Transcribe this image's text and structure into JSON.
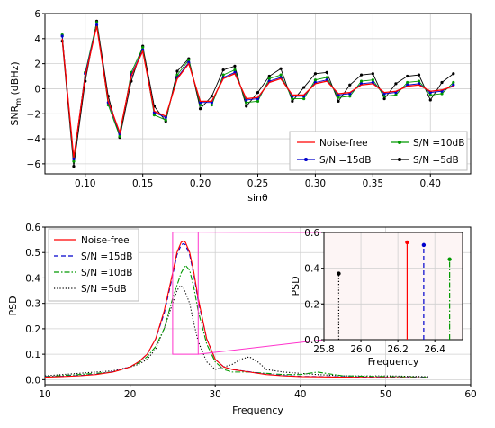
{
  "chart_data": [
    {
      "type": "line",
      "xlabel": "sinθ",
      "ylabel": "SNRₘ (dBHz)",
      "ylabel_main": "SNR",
      "ylabel_sub": "m",
      "ylabel_unit": " (dBHz)",
      "xlim": [
        0.065,
        0.435
      ],
      "ylim": [
        -6.8,
        6
      ],
      "xticks": [
        0.1,
        0.15,
        0.2,
        0.25,
        0.3,
        0.35,
        0.4
      ],
      "xtick_labels": [
        "0.10",
        "0.15",
        "0.20",
        "0.25",
        "0.30",
        "0.35",
        "0.40"
      ],
      "yticks": [
        -6,
        -4,
        -2,
        0,
        2,
        4,
        6
      ],
      "ytick_labels": [
        "−6",
        "−4",
        "−2",
        "0",
        "2",
        "4",
        "6"
      ],
      "grid": true,
      "legend_position": "lower-right",
      "series": [
        {
          "name": "Noise-free",
          "color": "#ff0000",
          "style": "solid",
          "x": [
            0.08,
            0.09,
            0.1,
            0.11,
            0.12,
            0.13,
            0.14,
            0.15,
            0.16,
            0.17,
            0.18,
            0.19,
            0.2,
            0.21,
            0.22,
            0.23,
            0.24,
            0.25,
            0.26,
            0.27,
            0.28,
            0.29,
            0.3,
            0.31,
            0.32,
            0.33,
            0.34,
            0.35,
            0.36,
            0.37,
            0.38,
            0.39,
            0.4,
            0.41,
            0.42
          ],
          "y": [
            4.0,
            -5.5,
            1.0,
            5.0,
            -1.0,
            -3.5,
            1.0,
            3.0,
            -1.8,
            -2.2,
            0.8,
            2.0,
            -1.0,
            -1.0,
            0.8,
            1.2,
            -0.8,
            -0.7,
            0.5,
            0.8,
            -0.5,
            -0.5,
            0.4,
            0.6,
            -0.4,
            -0.3,
            0.3,
            0.4,
            -0.3,
            -0.2,
            0.2,
            0.3,
            -0.2,
            -0.1,
            0.2
          ]
        },
        {
          "name": "S/N  =15dB",
          "color": "#0000cc",
          "style": "solid-marker",
          "x": [
            0.08,
            0.09,
            0.1,
            0.11,
            0.12,
            0.13,
            0.14,
            0.15,
            0.16,
            0.17,
            0.18,
            0.19,
            0.2,
            0.21,
            0.22,
            0.23,
            0.24,
            0.25,
            0.26,
            0.27,
            0.28,
            0.29,
            0.3,
            0.31,
            0.32,
            0.33,
            0.34,
            0.35,
            0.36,
            0.37,
            0.38,
            0.39,
            0.4,
            0.41,
            0.42
          ],
          "y": [
            4.2,
            -5.6,
            1.2,
            5.1,
            -1.1,
            -3.6,
            1.1,
            3.1,
            -1.9,
            -2.3,
            0.9,
            2.1,
            -1.1,
            -1.1,
            0.9,
            1.3,
            -0.9,
            -0.8,
            0.6,
            0.9,
            -0.6,
            -0.6,
            0.5,
            0.7,
            -0.5,
            -0.4,
            0.4,
            0.5,
            -0.4,
            -0.3,
            0.3,
            0.4,
            -0.3,
            -0.2,
            0.3
          ]
        },
        {
          "name": "S/N  =10dB",
          "color": "#009900",
          "style": "solid-marker",
          "x": [
            0.08,
            0.09,
            0.1,
            0.11,
            0.12,
            0.13,
            0.14,
            0.15,
            0.16,
            0.17,
            0.18,
            0.19,
            0.2,
            0.21,
            0.22,
            0.23,
            0.24,
            0.25,
            0.26,
            0.27,
            0.28,
            0.29,
            0.3,
            0.31,
            0.32,
            0.33,
            0.34,
            0.35,
            0.36,
            0.37,
            0.38,
            0.39,
            0.4,
            0.41,
            0.42
          ],
          "y": [
            4.3,
            -5.8,
            1.3,
            5.3,
            -1.3,
            -3.8,
            1.3,
            3.3,
            -2.1,
            -2.5,
            1.1,
            2.3,
            -1.3,
            -1.3,
            1.1,
            1.5,
            -1.1,
            -1.0,
            0.8,
            1.1,
            -0.8,
            -0.8,
            0.7,
            0.9,
            -0.7,
            -0.6,
            0.6,
            0.7,
            -0.6,
            -0.5,
            0.5,
            0.6,
            -0.5,
            -0.4,
            0.5
          ]
        },
        {
          "name": "S/N  =5dB",
          "color": "#000000",
          "style": "solid-marker",
          "x": [
            0.08,
            0.09,
            0.1,
            0.11,
            0.12,
            0.13,
            0.14,
            0.15,
            0.16,
            0.17,
            0.18,
            0.19,
            0.2,
            0.21,
            0.22,
            0.23,
            0.24,
            0.25,
            0.26,
            0.27,
            0.28,
            0.29,
            0.3,
            0.31,
            0.32,
            0.33,
            0.34,
            0.35,
            0.36,
            0.37,
            0.38,
            0.39,
            0.4,
            0.41,
            0.42
          ],
          "y": [
            3.8,
            -6.2,
            0.6,
            5.4,
            -0.6,
            -3.9,
            0.6,
            3.4,
            -1.4,
            -2.6,
            1.4,
            2.4,
            -1.6,
            -0.6,
            1.5,
            1.8,
            -1.4,
            -0.3,
            1.0,
            1.6,
            -1.0,
            0.1,
            1.2,
            1.3,
            -1.0,
            0.3,
            1.1,
            1.2,
            -0.8,
            0.4,
            1.0,
            1.1,
            -0.9,
            0.5,
            1.2
          ]
        }
      ]
    },
    {
      "type": "line",
      "xlabel": "Frequency",
      "ylabel": "PSD",
      "xlim": [
        10,
        60
      ],
      "ylim": [
        -0.02,
        0.6
      ],
      "xticks": [
        10,
        20,
        30,
        40,
        50,
        60
      ],
      "xtick_labels": [
        "10",
        "20",
        "30",
        "40",
        "50",
        "60"
      ],
      "yticks": [
        0.0,
        0.1,
        0.2,
        0.3,
        0.4,
        0.5,
        0.6
      ],
      "ytick_labels": [
        "0.0",
        "0.1",
        "0.2",
        "0.3",
        "0.4",
        "0.5",
        "0.6"
      ],
      "grid": true,
      "legend_position": "top-left",
      "series": [
        {
          "name": "Noise-free",
          "color": "#ff0000",
          "style": "solid",
          "x": [
            10,
            12,
            14,
            16,
            18,
            20,
            21,
            22,
            23,
            24,
            25,
            25.5,
            26,
            26.25,
            26.5,
            27,
            27.5,
            28,
            29,
            30,
            31,
            32,
            34,
            36,
            38,
            40,
            45,
            50,
            55
          ],
          "y": [
            0.01,
            0.012,
            0.015,
            0.02,
            0.03,
            0.05,
            0.07,
            0.1,
            0.16,
            0.27,
            0.42,
            0.5,
            0.54,
            0.545,
            0.54,
            0.5,
            0.42,
            0.32,
            0.16,
            0.08,
            0.05,
            0.04,
            0.03,
            0.02,
            0.015,
            0.012,
            0.01,
            0.008,
            0.007
          ]
        },
        {
          "name": "S/N  =15dB",
          "color": "#0000cc",
          "style": "dashed",
          "x": [
            10,
            12,
            14,
            16,
            18,
            20,
            21,
            22,
            23,
            24,
            25,
            25.5,
            26,
            26.3,
            26.5,
            27,
            27.5,
            28,
            29,
            30,
            31,
            32,
            34,
            36,
            38,
            40,
            45,
            50,
            55
          ],
          "y": [
            0.011,
            0.013,
            0.016,
            0.021,
            0.031,
            0.05,
            0.07,
            0.1,
            0.16,
            0.26,
            0.41,
            0.49,
            0.53,
            0.535,
            0.53,
            0.49,
            0.41,
            0.31,
            0.16,
            0.08,
            0.05,
            0.04,
            0.031,
            0.021,
            0.016,
            0.013,
            0.011,
            0.009,
            0.008
          ]
        },
        {
          "name": "S/N  =10dB",
          "color": "#009900",
          "style": "dashdot",
          "x": [
            10,
            12,
            14,
            16,
            18,
            20,
            21,
            22,
            23,
            24,
            25,
            26,
            26.5,
            27,
            27.5,
            28,
            29,
            30,
            31,
            32,
            34,
            36,
            38,
            40,
            42,
            45,
            50,
            55
          ],
          "y": [
            0.012,
            0.016,
            0.02,
            0.025,
            0.03,
            0.05,
            0.065,
            0.09,
            0.13,
            0.2,
            0.32,
            0.42,
            0.45,
            0.43,
            0.36,
            0.27,
            0.14,
            0.07,
            0.04,
            0.03,
            0.03,
            0.025,
            0.02,
            0.02,
            0.03,
            0.015,
            0.012,
            0.01
          ]
        },
        {
          "name": "S/N  =5dB",
          "color": "#000000",
          "style": "dotted",
          "x": [
            10,
            12,
            14,
            16,
            18,
            20,
            21,
            22,
            23,
            24,
            25,
            25.5,
            25.9,
            26.3,
            27,
            27.5,
            28,
            29,
            30,
            31,
            32,
            33,
            34,
            35,
            36,
            38,
            40,
            42,
            45,
            50,
            55
          ],
          "y": [
            0.015,
            0.02,
            0.025,
            0.03,
            0.035,
            0.05,
            0.06,
            0.08,
            0.12,
            0.2,
            0.3,
            0.35,
            0.37,
            0.36,
            0.3,
            0.22,
            0.15,
            0.07,
            0.04,
            0.05,
            0.06,
            0.08,
            0.09,
            0.07,
            0.04,
            0.03,
            0.025,
            0.02,
            0.015,
            0.015,
            0.012
          ]
        }
      ]
    },
    {
      "type": "line",
      "subtype": "stem",
      "xlabel": "Frequency",
      "ylabel": "PSD",
      "xlim": [
        25.8,
        26.55
      ],
      "ylim": [
        0,
        0.6
      ],
      "xticks": [
        25.8,
        26.0,
        26.2,
        26.4
      ],
      "xtick_labels": [
        "25.8",
        "26.0",
        "26.2",
        "26.4"
      ],
      "yticks": [
        0.0,
        0.2,
        0.4,
        0.6
      ],
      "ytick_labels": [
        "0.0",
        "0.2",
        "0.4",
        "0.6"
      ],
      "grid": true,
      "stems": [
        {
          "series": "Noise-free",
          "x": 26.25,
          "y": 0.545,
          "color": "#ff0000",
          "style": "solid"
        },
        {
          "series": "S/N  =15dB",
          "x": 26.34,
          "y": 0.53,
          "color": "#0000cc",
          "style": "dashed"
        },
        {
          "series": "S/N  =10dB",
          "x": 26.48,
          "y": 0.45,
          "color": "#009900",
          "style": "dashdot"
        },
        {
          "series": "S/N  =5dB",
          "x": 25.88,
          "y": 0.37,
          "color": "#000000",
          "style": "dotted"
        }
      ]
    }
  ],
  "zoom_box": {
    "x_range": [
      25,
      28
    ],
    "y_range": [
      0.1,
      0.58
    ],
    "color": "#ff33cc"
  },
  "colors": {
    "zoom": "#ff33cc",
    "inset_bg": "#fdf5f5"
  }
}
